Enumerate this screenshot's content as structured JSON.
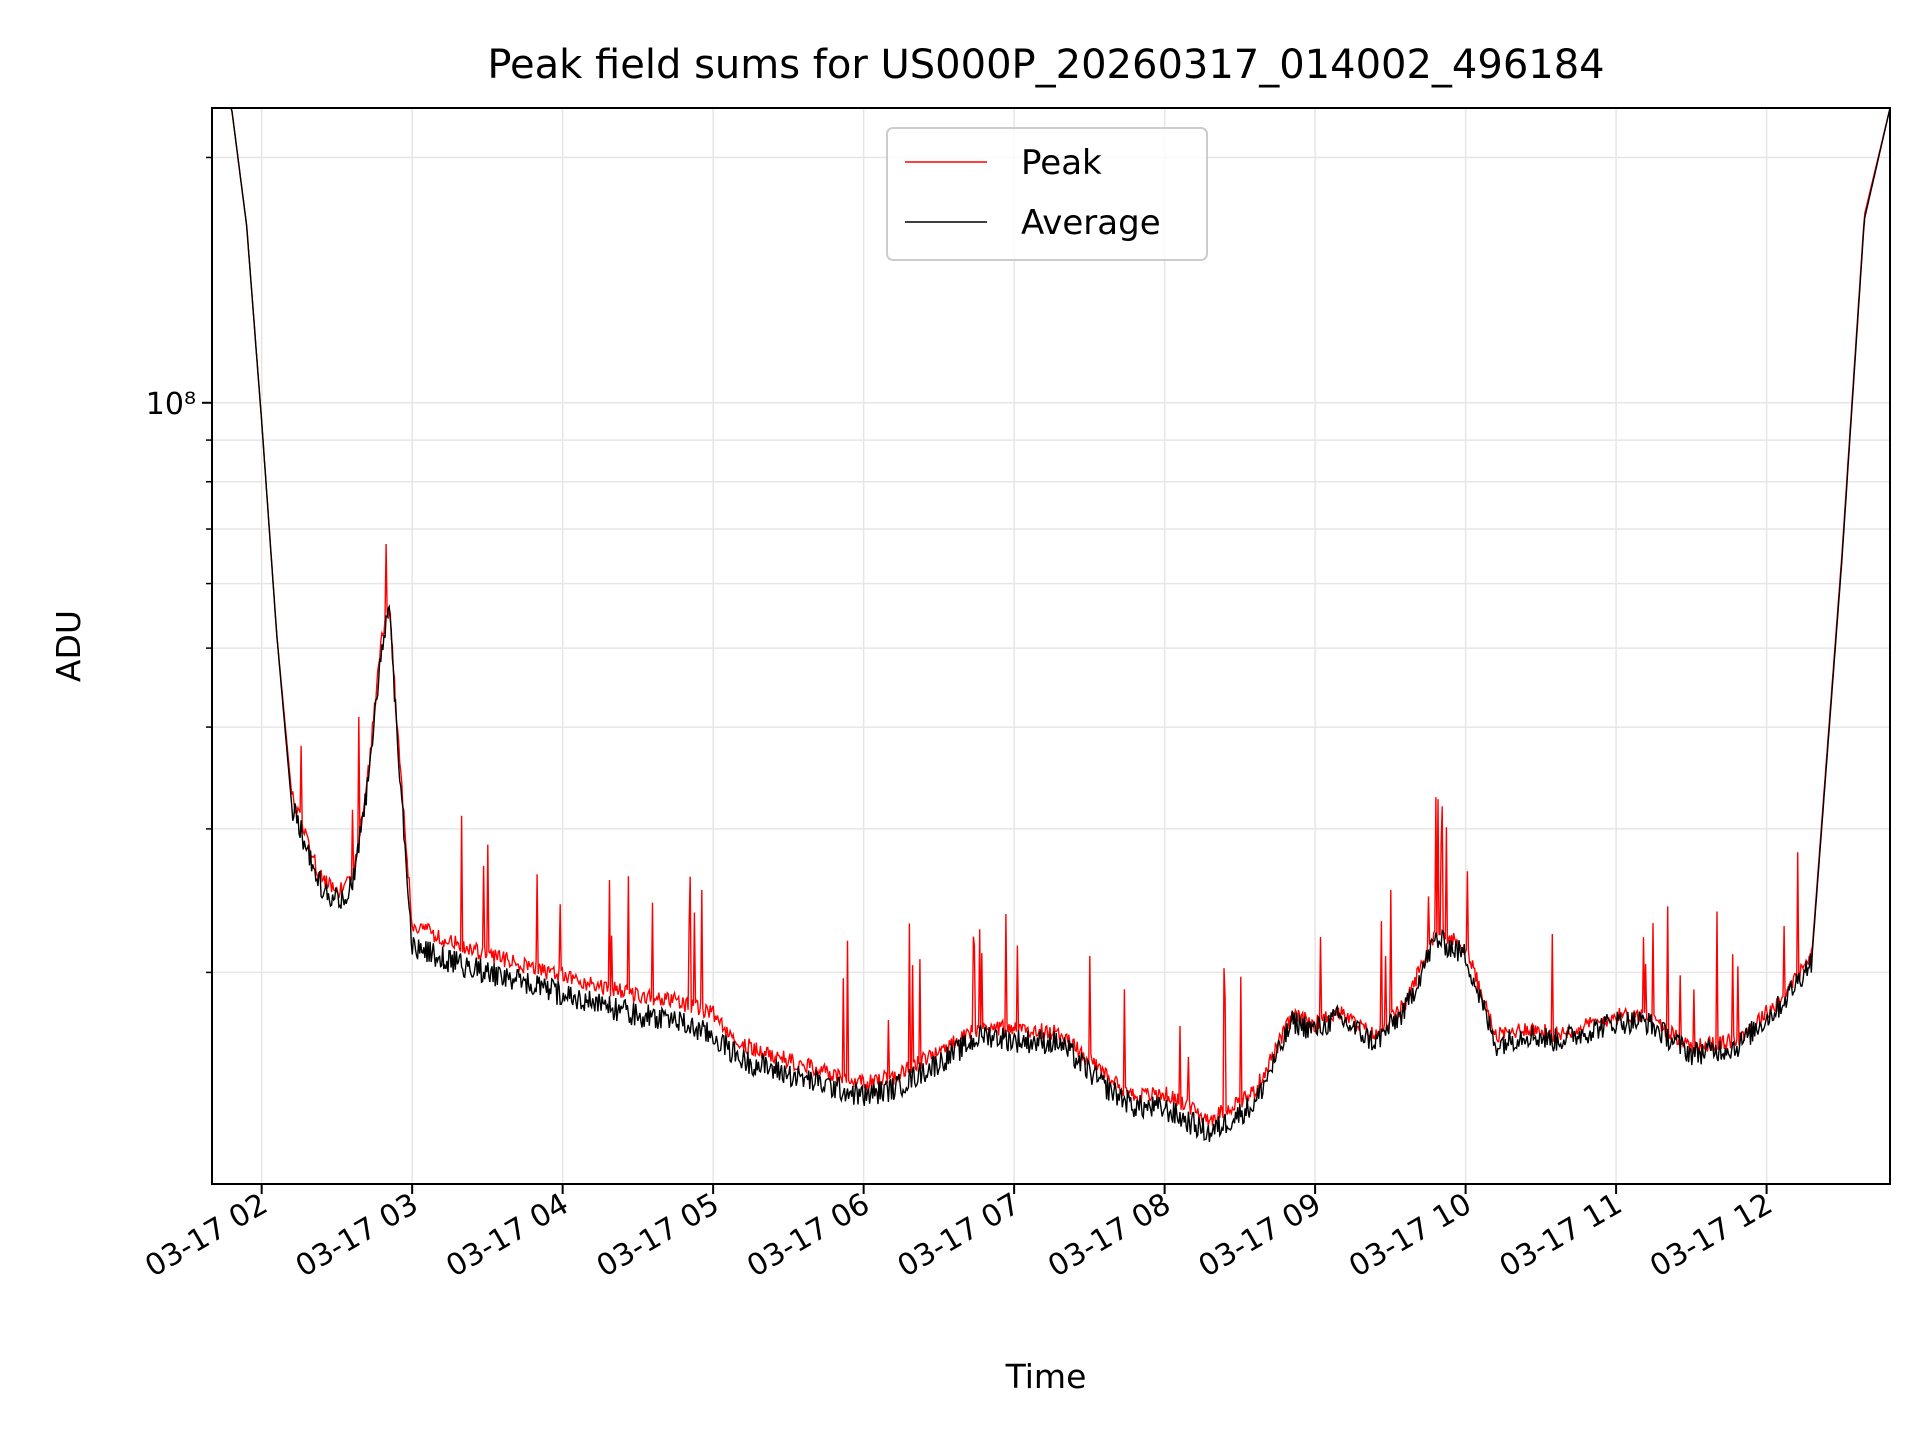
{
  "chart_data": {
    "type": "line",
    "title": "Peak field sums for US000P_20260317_014002_496184",
    "xlabel": "Time",
    "ylabel": "ADU",
    "yscale": "log",
    "xlim_hours": [
      1.67,
      12.82
    ],
    "ylim": [
      11000000,
      230000000
    ],
    "grid": true,
    "x_tick_labels": [
      "03-17 02",
      "03-17 03",
      "03-17 04",
      "03-17 05",
      "03-17 06",
      "03-17 07",
      "03-17 08",
      "03-17 09",
      "03-17 10",
      "03-17 11",
      "03-17 12"
    ],
    "x_tick_hours": [
      2,
      3,
      4,
      5,
      6,
      7,
      8,
      9,
      10,
      11,
      12
    ],
    "y_tick_label": "10⁸",
    "y_tick_value": 100000000,
    "legend": {
      "placement": "top-center",
      "entries": [
        "Peak",
        "Average"
      ]
    },
    "series": [
      {
        "name": "Peak",
        "color": "#ff0000",
        "x": [
          1.67,
          1.8,
          1.9,
          2.0,
          2.1,
          2.2,
          2.3,
          2.4,
          2.5,
          2.6,
          2.7,
          2.8,
          2.85,
          2.9,
          3.0,
          3.2,
          3.5,
          4.0,
          4.5,
          4.7,
          5.0,
          5.2,
          5.5,
          6.0,
          6.2,
          6.5,
          6.8,
          7.0,
          7.3,
          7.6,
          7.8,
          8.0,
          8.3,
          8.6,
          8.85,
          9.0,
          9.15,
          9.4,
          9.6,
          9.8,
          10.0,
          10.2,
          10.4,
          10.6,
          10.8,
          11.0,
          11.2,
          11.5,
          11.8,
          12.1,
          12.3,
          12.5,
          12.65,
          12.82
        ],
        "values": [
          230000000,
          230000000,
          165000000,
          95000000,
          52000000,
          33000000,
          29000000,
          26000000,
          25000000,
          26000000,
          34000000,
          52000000,
          56000000,
          40000000,
          23000000,
          22000000,
          21000000,
          19800000,
          18700000,
          18600000,
          17800000,
          16300000,
          15600000,
          14600000,
          14900000,
          16000000,
          17200000,
          17000000,
          16900000,
          15000000,
          14100000,
          14200000,
          13200000,
          14300000,
          17700000,
          17300000,
          17900000,
          16700000,
          18300000,
          22500000,
          21500000,
          16700000,
          17100000,
          16800000,
          17200000,
          17700000,
          17700000,
          16200000,
          16500000,
          18600000,
          21000000,
          65000000,
          170000000,
          230000000
        ]
      },
      {
        "name": "Average",
        "color": "#000000",
        "x": [
          1.67,
          1.8,
          1.9,
          2.0,
          2.1,
          2.2,
          2.3,
          2.4,
          2.5,
          2.6,
          2.7,
          2.8,
          2.85,
          2.9,
          3.0,
          3.2,
          3.5,
          4.0,
          4.5,
          4.7,
          5.0,
          5.2,
          5.5,
          6.0,
          6.2,
          6.5,
          6.8,
          7.0,
          7.3,
          7.6,
          7.8,
          8.0,
          8.3,
          8.6,
          8.85,
          9.0,
          9.15,
          9.4,
          9.6,
          9.8,
          10.0,
          10.2,
          10.4,
          10.6,
          10.8,
          11.0,
          11.2,
          11.5,
          11.8,
          12.1,
          12.3,
          12.5,
          12.65,
          12.82
        ],
        "values": [
          230000000,
          230000000,
          165000000,
          95000000,
          52000000,
          32000000,
          28500000,
          25500000,
          24500000,
          25500000,
          33500000,
          51000000,
          55000000,
          39000000,
          21500000,
          20800000,
          20000000,
          18800000,
          17700000,
          17600000,
          16700000,
          15600000,
          15000000,
          14100000,
          14400000,
          15500000,
          16800000,
          16500000,
          16400000,
          14500000,
          13700000,
          13600000,
          12700000,
          13800000,
          17400000,
          17000000,
          17600000,
          16400000,
          18000000,
          22000000,
          21000000,
          16300000,
          16800000,
          16500000,
          16900000,
          17400000,
          17400000,
          15900000,
          16200000,
          18300000,
          20700000,
          64000000,
          168000000,
          230000000
        ]
      }
    ]
  }
}
